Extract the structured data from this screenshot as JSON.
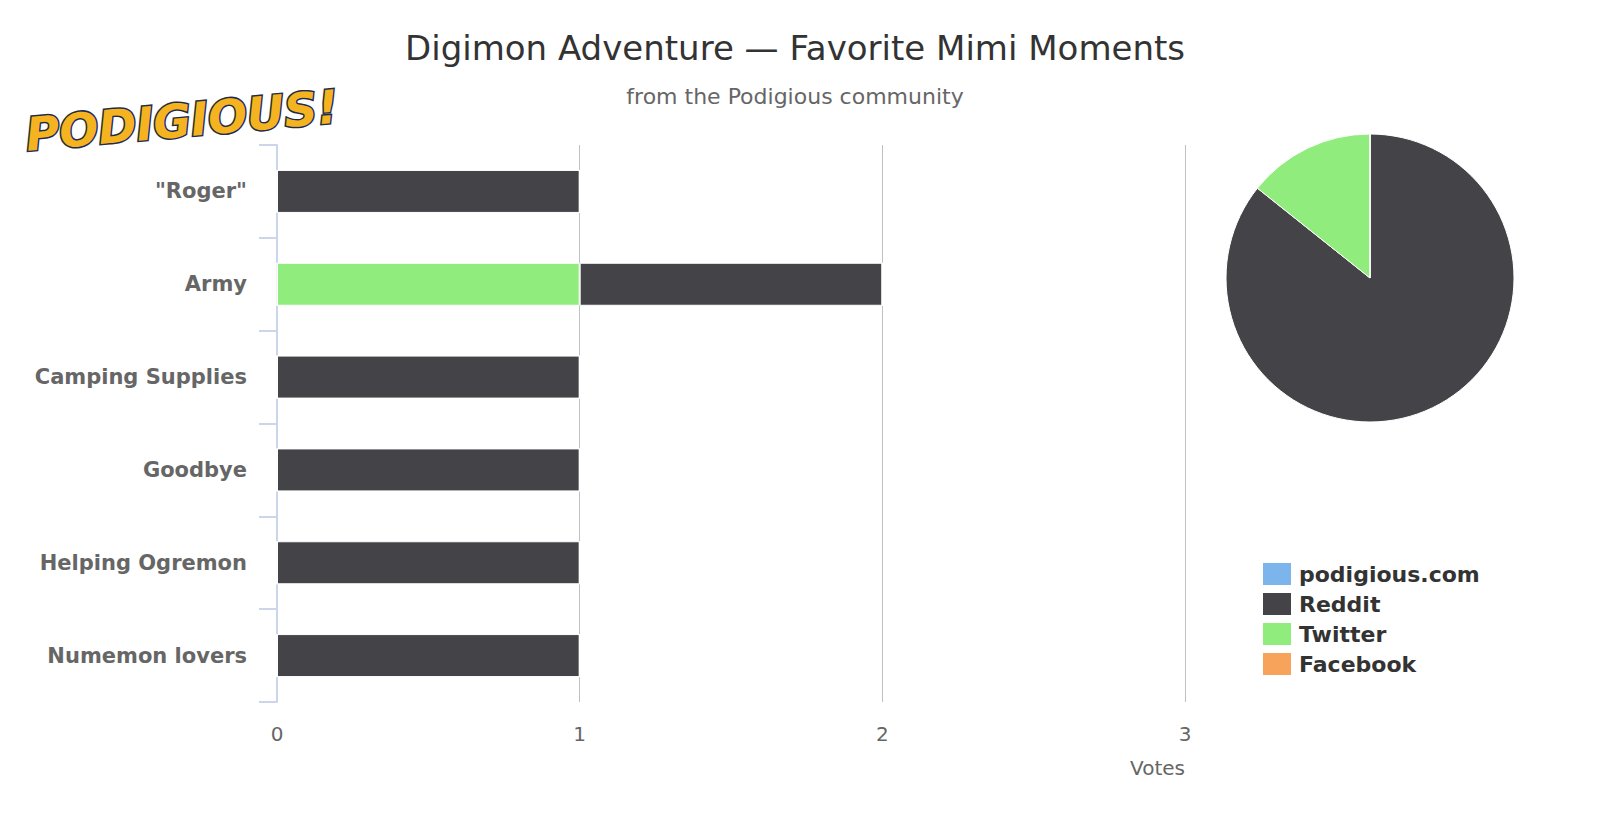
{
  "chart_data": [
    {
      "type": "bar",
      "title": "Digimon Adventure — Favorite Mimi Moments",
      "subtitle": "from the Podigious community",
      "annotations": [
        "PODIGIOUS!"
      ],
      "orientation": "horizontal",
      "stacked": true,
      "categories": [
        "\"Roger\"",
        "Army",
        "Camping Supplies",
        "Goodbye",
        "Helping Ogremon",
        "Numemon lovers"
      ],
      "series": [
        {
          "name": "podigious.com",
          "color": "#7cb5ec",
          "values": [
            0,
            0,
            0,
            0,
            0,
            0
          ]
        },
        {
          "name": "Reddit",
          "color": "#434348",
          "values": [
            1,
            1,
            1,
            1,
            1,
            1
          ]
        },
        {
          "name": "Twitter",
          "color": "#90ed7d",
          "values": [
            0,
            1,
            0,
            0,
            0,
            0
          ]
        },
        {
          "name": "Facebook",
          "color": "#f7a35c",
          "values": [
            0,
            0,
            0,
            0,
            0,
            0
          ]
        }
      ],
      "x_label": "Votes",
      "xlim": [
        0,
        3
      ],
      "xticks": [
        0,
        1,
        2,
        3
      ],
      "grid": true,
      "legend": "right"
    },
    {
      "type": "pie",
      "categories": [
        "podigious.com",
        "Reddit",
        "Twitter",
        "Facebook"
      ],
      "values": [
        0,
        6,
        1,
        0
      ],
      "colors": [
        "#7cb5ec",
        "#434348",
        "#90ed7d",
        "#f7a35c"
      ]
    }
  ]
}
